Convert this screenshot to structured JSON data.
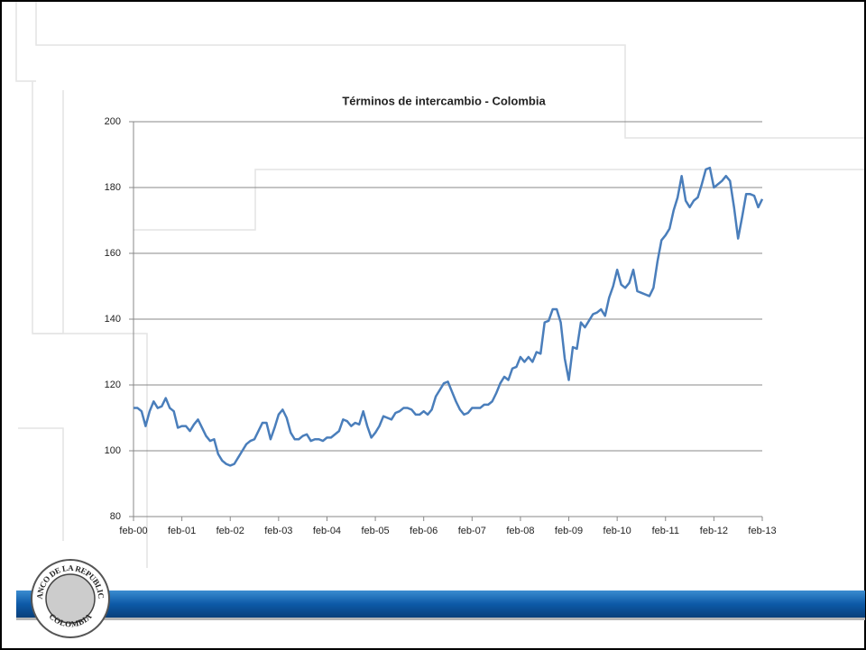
{
  "chart_data": {
    "type": "line",
    "title": "Términos de intercambio - Colombia",
    "categories": [
      "feb-00",
      null,
      null,
      null,
      null,
      null,
      null,
      null,
      null,
      null,
      null,
      null,
      "feb-01",
      null,
      null,
      null,
      null,
      null,
      null,
      null,
      null,
      null,
      null,
      null,
      "feb-02",
      null,
      null,
      null,
      null,
      null,
      null,
      null,
      null,
      null,
      null,
      null,
      "feb-03",
      null,
      null,
      null,
      null,
      null,
      null,
      null,
      null,
      null,
      null,
      null,
      "feb-04",
      null,
      null,
      null,
      null,
      null,
      null,
      null,
      null,
      null,
      null,
      null,
      "feb-05",
      null,
      null,
      null,
      null,
      null,
      null,
      null,
      null,
      null,
      null,
      null,
      "feb-06",
      null,
      null,
      null,
      null,
      null,
      null,
      null,
      null,
      null,
      null,
      null,
      "feb-07",
      null,
      null,
      null,
      null,
      null,
      null,
      null,
      null,
      null,
      null,
      null,
      "feb-08",
      null,
      null,
      null,
      null,
      null,
      null,
      null,
      null,
      null,
      null,
      null,
      "feb-09",
      null,
      null,
      null,
      null,
      null,
      null,
      null,
      null,
      null,
      null,
      null,
      "feb-10",
      null,
      null,
      null,
      null,
      null,
      null,
      null,
      null,
      null,
      null,
      null,
      "feb-11",
      null,
      null,
      null,
      null,
      null,
      null,
      null,
      null,
      null,
      null,
      null,
      "feb-12",
      null,
      null,
      null,
      null,
      null,
      null,
      null,
      null,
      null,
      null,
      null,
      "feb-13"
    ],
    "series": [
      {
        "name": "Términos de intercambio",
        "color": "#4a7ebb",
        "values": [
          113,
          113,
          112,
          107.5,
          112,
          115,
          113,
          113.5,
          116,
          113,
          112,
          107,
          107.5,
          107.5,
          106,
          108,
          109.5,
          107,
          104.5,
          103,
          103.5,
          99,
          97,
          96,
          95.5,
          96,
          98,
          100,
          102,
          103,
          103.5,
          106,
          108.5,
          108.5,
          103.5,
          107,
          111,
          112.5,
          110,
          105.5,
          103.5,
          103.5,
          104.5,
          105,
          103,
          103.5,
          103.5,
          103,
          104,
          104,
          105,
          106,
          109.5,
          109,
          107.5,
          108.5,
          108,
          112,
          107.5,
          104,
          105.5,
          107.5,
          110.5,
          110,
          109.5,
          111.5,
          112,
          113,
          113,
          112.5,
          111,
          111,
          112,
          111,
          112.5,
          116.5,
          118.5,
          120.5,
          121,
          118,
          115,
          112.5,
          111,
          111.5,
          113,
          113,
          113,
          114,
          114,
          115,
          117.5,
          120.5,
          122.5,
          121.5,
          125,
          125.5,
          128.5,
          127,
          128.5,
          127,
          130,
          129.5,
          139,
          139.5,
          143,
          143,
          139,
          128,
          121.5,
          131.5,
          131,
          139,
          137.5,
          139.5,
          141.5,
          142,
          143,
          141,
          146.5,
          150,
          155,
          150.5,
          149.5,
          151,
          155,
          148.5,
          148,
          147.5,
          147,
          149.5,
          157.5,
          164,
          165.5,
          167.5,
          173,
          177,
          183.5,
          176,
          174,
          176,
          177,
          181,
          185.5,
          186,
          180,
          181,
          182,
          183.5,
          182,
          174,
          164.5,
          171,
          178,
          178,
          177.5,
          174,
          176.5
        ]
      }
    ],
    "ylim": [
      80,
      200
    ],
    "yticks": [
      80,
      100,
      120,
      140,
      160,
      180,
      200
    ],
    "grid": true
  },
  "logo": {
    "top": "BANCO DE LA REPUBLICA",
    "bottom": "COLOMBIA"
  }
}
